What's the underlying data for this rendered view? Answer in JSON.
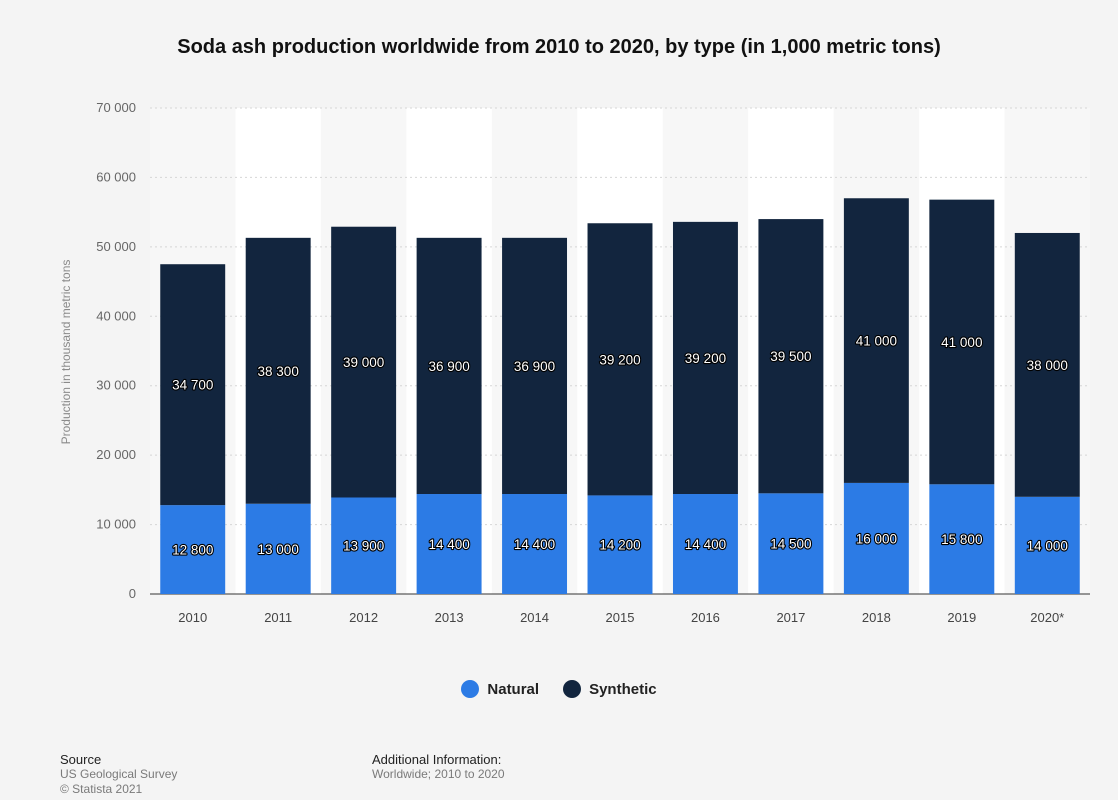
{
  "chart_data": {
    "type": "bar",
    "stacked": true,
    "title": "Soda ash production worldwide from 2010 to 2020, by type (in 1,000 metric tons)",
    "xlabel": "",
    "ylabel": "Production in thousand metric tons",
    "ylim": [
      0,
      70000
    ],
    "yticks": [
      "0",
      "10 000",
      "20 000",
      "30 000",
      "40 000",
      "50 000",
      "60 000",
      "70 000"
    ],
    "grid": true,
    "legend_position": "bottom-center",
    "categories": [
      "2010",
      "2011",
      "2012",
      "2013",
      "2014",
      "2015",
      "2016",
      "2017",
      "2018",
      "2019",
      "2020*"
    ],
    "series": [
      {
        "name": "Natural",
        "color": "#2c7be5",
        "values": [
          12800,
          13000,
          13900,
          14400,
          14400,
          14200,
          14400,
          14500,
          16000,
          15800,
          14000
        ],
        "labels": [
          "12 800",
          "13 000",
          "13 900",
          "14 400",
          "14 400",
          "14 200",
          "14 400",
          "14 500",
          "16 000",
          "15 800",
          "14 000"
        ]
      },
      {
        "name": "Synthetic",
        "color": "#12253e",
        "values": [
          34700,
          38300,
          39000,
          36900,
          36900,
          39200,
          39200,
          39500,
          41000,
          41000,
          38000
        ],
        "labels": [
          "34 700",
          "38 300",
          "39 000",
          "36 900",
          "36 900",
          "39 200",
          "39 200",
          "39 500",
          "41 000",
          "41 000",
          "38 000"
        ]
      }
    ]
  },
  "footer": {
    "source_heading": "Source",
    "source_lines": [
      "US Geological Survey",
      "© Statista 2021"
    ],
    "info_heading": "Additional Information:",
    "info_line": "Worldwide; 2010 to 2020"
  }
}
